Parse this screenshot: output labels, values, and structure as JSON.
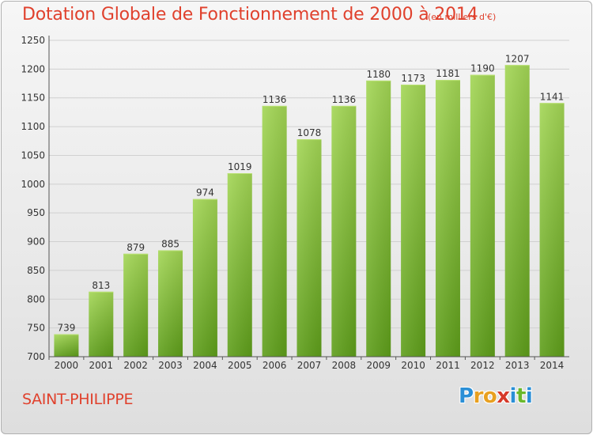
{
  "chart_data": {
    "type": "bar",
    "title": "Dotation Globale de Fonctionnement de 2000 à 2014",
    "subtitle": "(en milliers d'€)",
    "xlabel": "",
    "ylabel": "",
    "categories": [
      "2000",
      "2001",
      "2002",
      "2003",
      "2004",
      "2005",
      "2006",
      "2007",
      "2008",
      "2009",
      "2010",
      "2011",
      "2012",
      "2013",
      "2014"
    ],
    "values": [
      739,
      813,
      879,
      885,
      974,
      1019,
      1136,
      1078,
      1136,
      1180,
      1173,
      1181,
      1190,
      1207,
      1141
    ],
    "ylim": [
      700,
      1250
    ],
    "yticks": [
      700,
      750,
      800,
      850,
      900,
      950,
      1000,
      1050,
      1100,
      1150,
      1200,
      1250
    ],
    "grid": true,
    "bar_color": "#8cc63f",
    "bar_color_dark": "#5e9e1a"
  },
  "commune": "SAINT-PHILIPPE",
  "logo": {
    "letters": [
      "P",
      "r",
      "o",
      "x",
      "i",
      "t",
      "i"
    ],
    "colors": [
      "#2a8fd6",
      "#e8a020",
      "#e8a020",
      "#d63a2a",
      "#2a8fd6",
      "#6ab82c",
      "#2a8fd6"
    ]
  },
  "colors": {
    "title": "#e0412d",
    "axis": "#333333",
    "grid": "#d0d0d0"
  }
}
